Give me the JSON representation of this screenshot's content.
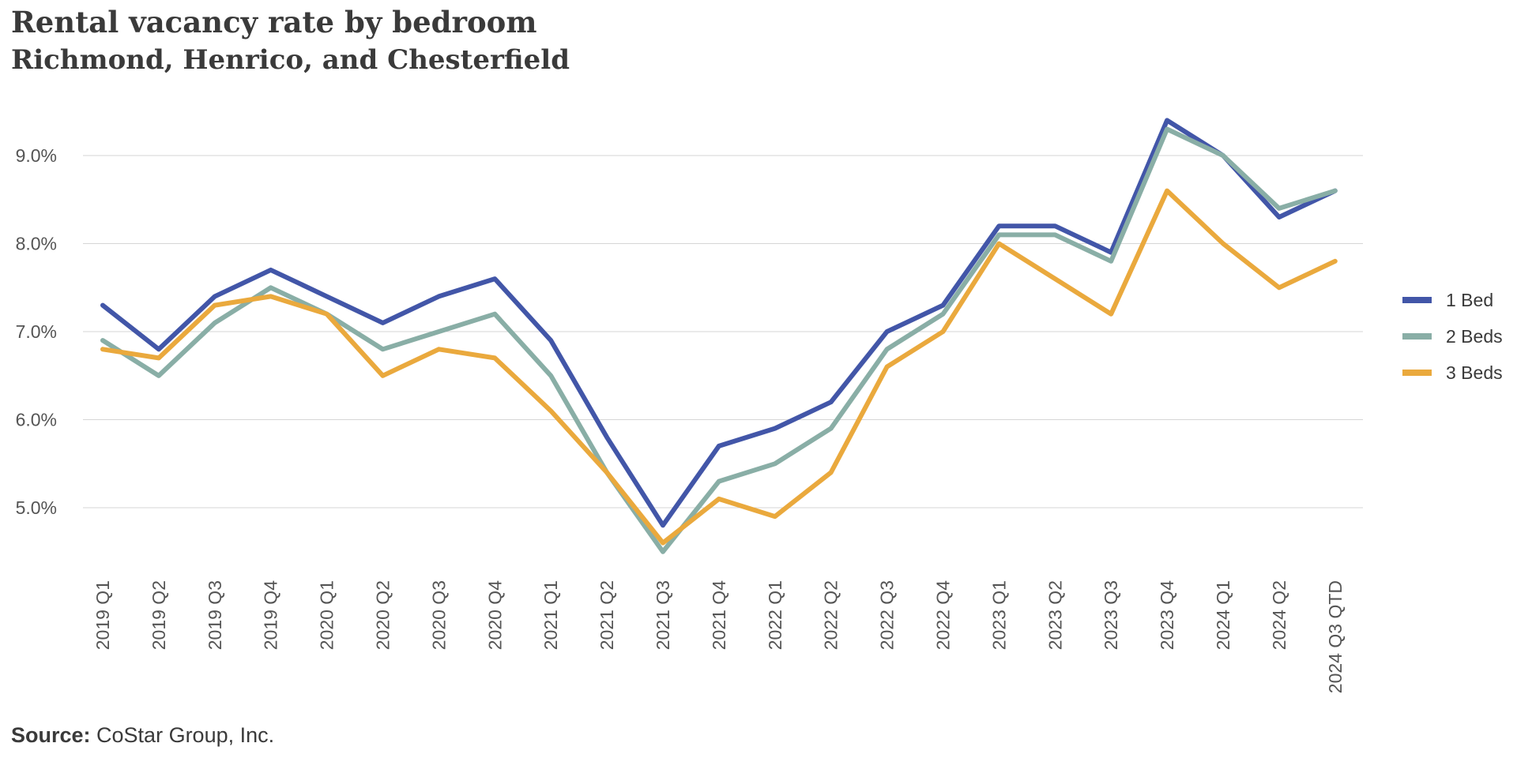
{
  "header": {
    "title": "Rental vacancy rate by bedroom",
    "subtitle": "Richmond, Henrico, and Chesterfield"
  },
  "footer": {
    "source_label": "Source:",
    "source_text": " CoStar Group, Inc."
  },
  "chart_data": {
    "type": "line",
    "title": "Rental vacancy rate by bedroom",
    "subtitle": "Richmond, Henrico, and Chesterfield",
    "xlabel": "",
    "ylabel": "",
    "x": [
      "2019 Q1",
      "2019 Q2",
      "2019 Q3",
      "2019 Q4",
      "2020 Q1",
      "2020 Q2",
      "2020 Q3",
      "2020 Q4",
      "2021 Q1",
      "2021 Q2",
      "2021 Q3",
      "2021 Q4",
      "2022 Q1",
      "2022 Q2",
      "2022 Q3",
      "2022 Q4",
      "2023 Q1",
      "2023 Q2",
      "2023 Q3",
      "2023 Q4",
      "2024 Q1",
      "2024 Q2",
      "2024 Q3 QTD"
    ],
    "yticks": [
      5.0,
      6.0,
      7.0,
      8.0,
      9.0
    ],
    "ytick_labels": [
      "5.0%",
      "6.0%",
      "7.0%",
      "8.0%",
      "9.0%"
    ],
    "ylim": [
      4.0,
      9.9
    ],
    "grid": true,
    "legend_position": "right",
    "series": [
      {
        "name": "1 Bed",
        "color": "#4256a8",
        "values": [
          7.3,
          6.8,
          7.4,
          7.7,
          7.4,
          7.1,
          7.4,
          7.6,
          6.9,
          5.8,
          4.8,
          5.7,
          5.9,
          6.2,
          7.0,
          7.3,
          8.2,
          8.2,
          7.9,
          9.4,
          9.0,
          8.3,
          8.6
        ]
      },
      {
        "name": "2 Beds",
        "color": "#89aea6",
        "values": [
          6.9,
          6.5,
          7.1,
          7.5,
          7.2,
          6.8,
          7.0,
          7.2,
          6.5,
          5.4,
          4.5,
          5.3,
          5.5,
          5.9,
          6.8,
          7.2,
          8.1,
          8.1,
          7.8,
          9.3,
          9.0,
          8.4,
          8.6
        ]
      },
      {
        "name": "3 Beds",
        "color": "#eaa93d",
        "values": [
          6.8,
          6.7,
          7.3,
          7.4,
          7.2,
          6.5,
          6.8,
          6.7,
          6.1,
          5.4,
          4.6,
          5.1,
          4.9,
          5.4,
          6.6,
          7.0,
          8.0,
          7.6,
          7.2,
          8.6,
          8.0,
          7.5,
          7.8
        ]
      }
    ]
  }
}
